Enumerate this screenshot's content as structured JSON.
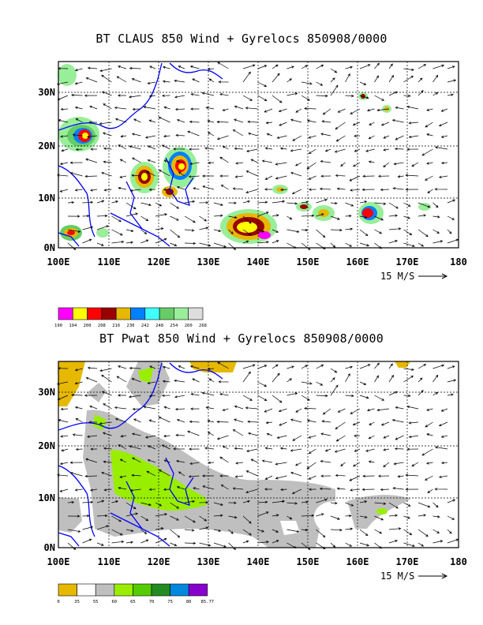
{
  "panels": [
    {
      "id": "claus",
      "title": "BT CLAUS 850 Wind + Gyrelocs 850908/0000",
      "lat_labels": [
        "30N",
        "20N",
        "10N",
        "0N"
      ],
      "lon_labels": [
        "100E",
        "110E",
        "120E",
        "130E",
        "140E",
        "150E",
        "160E",
        "170E",
        "180"
      ],
      "vector_ref": "15 M/S",
      "colorbar": {
        "labels": [
          "190",
          "194",
          "200",
          "208",
          "216",
          "230",
          "242",
          "248",
          "254",
          "260",
          "268"
        ],
        "colors": [
          "#ff00ff",
          "#ffff00",
          "#ff0000",
          "#990000",
          "#e6b800",
          "#0080ff",
          "#40ffff",
          "#66cc66",
          "#99ee99",
          "#dddddd"
        ]
      }
    },
    {
      "id": "pwat",
      "title": "BT Pwat 850 Wind + Gyrelocs 850908/0000",
      "lat_labels": [
        "30N",
        "20N",
        "10N",
        "0N"
      ],
      "lon_labels": [
        "100E",
        "110E",
        "120E",
        "130E",
        "140E",
        "150E",
        "160E",
        "170E",
        "180"
      ],
      "vector_ref": "15 M/S",
      "colorbar": {
        "labels": [
          "0",
          "35",
          "55",
          "60",
          "65",
          "70",
          "75",
          "80",
          "85.77"
        ],
        "colors": [
          "#e6b800",
          "#ffffff",
          "#bfbfbf",
          "#99ee00",
          "#55cc00",
          "#228b22",
          "#0088dd",
          "#8800cc"
        ]
      }
    }
  ]
}
